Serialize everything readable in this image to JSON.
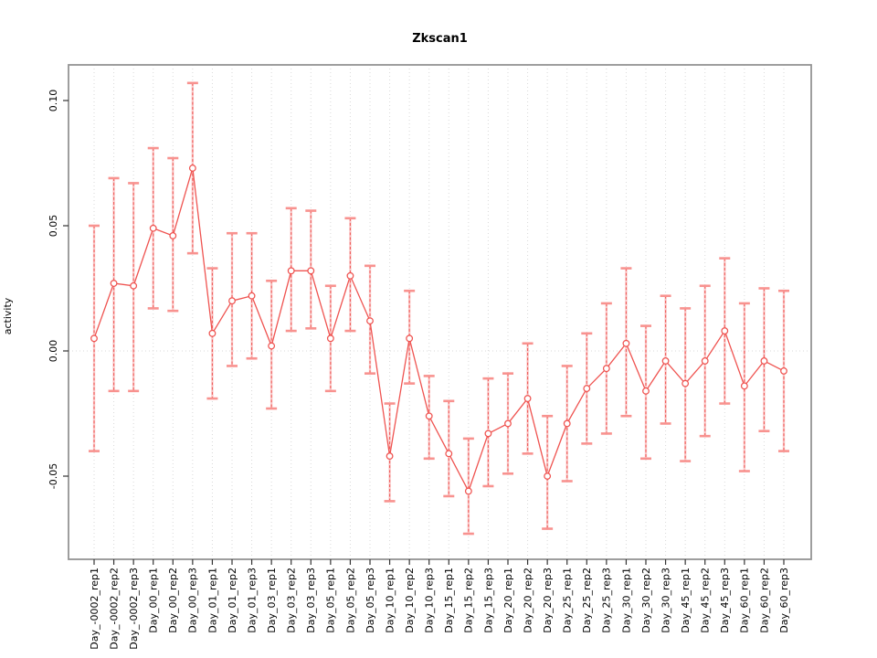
{
  "chart_data": {
    "type": "line",
    "subtype": "points-with-error-bars",
    "title": "Zkscan1",
    "xlabel": "",
    "ylabel": "activity",
    "ylim": [
      -0.083,
      0.114
    ],
    "yticks": [
      -0.05,
      0.0,
      0.05,
      0.1
    ],
    "ytick_labels": [
      "-0.05",
      "0.00",
      "0.05",
      "0.10"
    ],
    "grid": "vertical dotted gridline at every category; horizontal dotted line at y=0; no legend",
    "legend_position": "none",
    "point_style": "open-circle",
    "colors": {
      "series": "#ef5350",
      "error_stem": "#ef5350",
      "error_stem_soft": "#f8a0a0",
      "error_cap": "#f8928f",
      "frame": "#949494",
      "gridline": "#d9d9d9",
      "tick": "#333333",
      "text": "#000000"
    },
    "categories": [
      "Day_-0002_rep1",
      "Day_-0002_rep2",
      "Day_-0002_rep3",
      "Day_00_rep1",
      "Day_00_rep2",
      "Day_00_rep3",
      "Day_01_rep1",
      "Day_01_rep2",
      "Day_01_rep3",
      "Day_03_rep1",
      "Day_03_rep2",
      "Day_03_rep3",
      "Day_05_rep1",
      "Day_05_rep2",
      "Day_05_rep3",
      "Day_10_rep1",
      "Day_10_rep2",
      "Day_10_rep3",
      "Day_15_rep1",
      "Day_15_rep2",
      "Day_15_rep3",
      "Day_20_rep1",
      "Day_20_rep2",
      "Day_20_rep3",
      "Day_25_rep1",
      "Day_25_rep2",
      "Day_25_rep3",
      "Day_30_rep1",
      "Day_30_rep2",
      "Day_30_rep3",
      "Day_45_rep1",
      "Day_45_rep2",
      "Day_45_rep3",
      "Day_60_rep1",
      "Day_60_rep2",
      "Day_60_rep3"
    ],
    "series": [
      {
        "name": "activity",
        "values": [
          0.005,
          0.027,
          0.026,
          0.049,
          0.046,
          0.073,
          0.007,
          0.02,
          0.022,
          0.002,
          0.032,
          0.032,
          0.005,
          0.03,
          0.012,
          -0.042,
          0.005,
          -0.026,
          -0.041,
          -0.056,
          -0.033,
          -0.029,
          -0.019,
          -0.05,
          -0.029,
          -0.015,
          -0.007,
          0.003,
          -0.016,
          -0.004,
          -0.013,
          -0.004,
          0.008,
          -0.014,
          -0.004,
          -0.008
        ],
        "upper": [
          0.05,
          0.069,
          0.067,
          0.081,
          0.077,
          0.107,
          0.033,
          0.047,
          0.047,
          0.028,
          0.057,
          0.056,
          0.026,
          0.053,
          0.034,
          -0.021,
          0.024,
          -0.01,
          -0.02,
          -0.035,
          -0.011,
          -0.009,
          0.003,
          -0.026,
          -0.006,
          0.007,
          0.019,
          0.033,
          0.01,
          0.022,
          0.017,
          0.026,
          0.037,
          0.019,
          0.025,
          0.024
        ],
        "lower": [
          -0.04,
          -0.016,
          -0.016,
          0.017,
          0.016,
          0.039,
          -0.019,
          -0.006,
          -0.003,
          -0.023,
          0.008,
          0.009,
          -0.016,
          0.008,
          -0.009,
          -0.06,
          -0.013,
          -0.043,
          -0.058,
          -0.073,
          -0.054,
          -0.049,
          -0.041,
          -0.071,
          -0.052,
          -0.037,
          -0.033,
          -0.026,
          -0.043,
          -0.029,
          -0.044,
          -0.034,
          -0.021,
          -0.048,
          -0.032,
          -0.04
        ]
      }
    ]
  }
}
